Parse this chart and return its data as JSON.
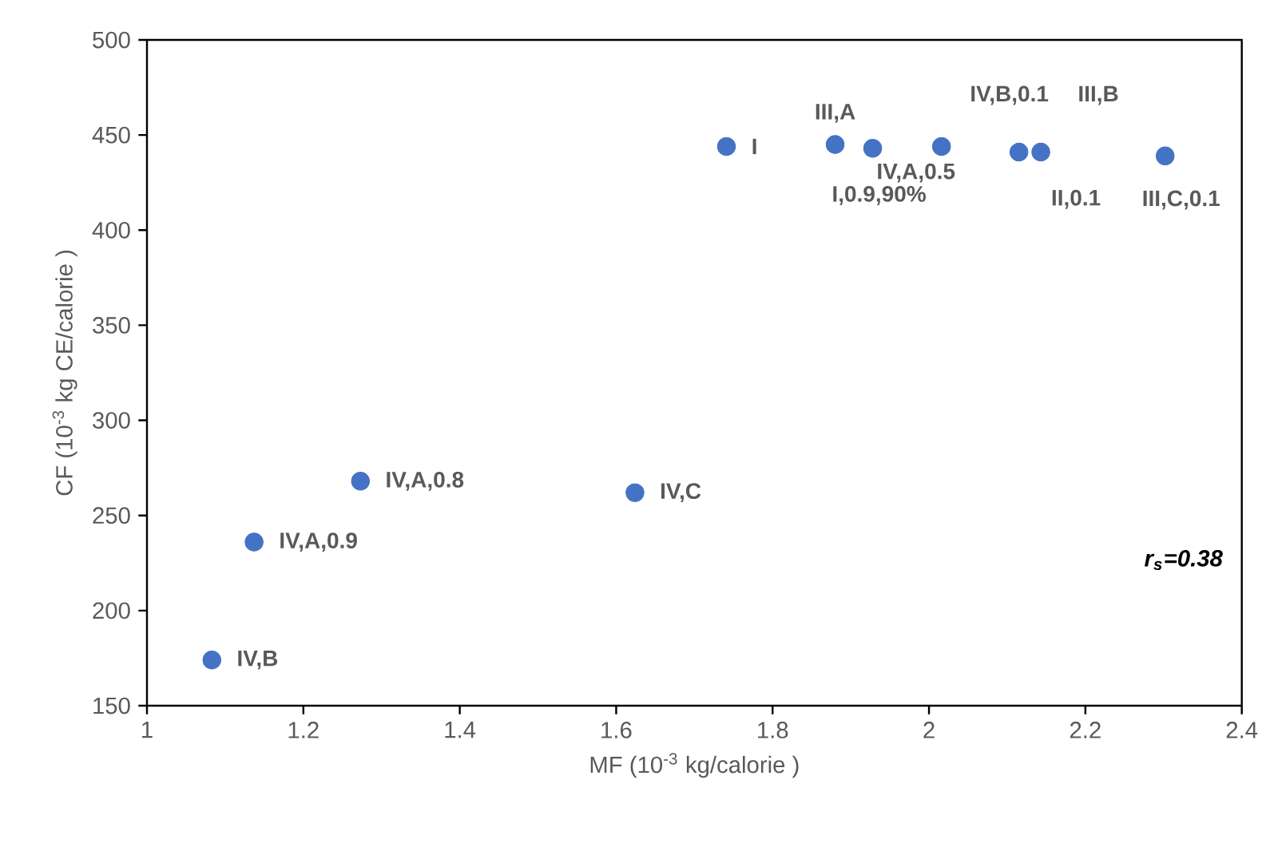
{
  "chart_data": {
    "type": "scatter",
    "xlabel": "MF (10$^{-3}$ kg/calorie )",
    "ylabel": "CF (10$^{-3}$ kg CE/calorie )",
    "x": [
      1.741,
      1.88,
      1.928,
      2.016,
      2.115,
      null,
      2.143,
      2.302,
      1.273,
      1.624,
      1.137,
      1.083
    ],
    "values": [
      444,
      445,
      443,
      444,
      441,
      null,
      441,
      439,
      268,
      262,
      236,
      174
    ],
    "color": "#4472c4",
    "marker": "circle",
    "xlim": [
      1,
      2.4
    ],
    "xticks": [
      1,
      1.2,
      1.4,
      1.6,
      1.8,
      2,
      2.2,
      2.4
    ],
    "ylim": [
      150,
      500
    ],
    "yticks": [
      150,
      200,
      250,
      300,
      350,
      400,
      450,
      500
    ],
    "grid": false,
    "annotations": [
      {
        "text": "I",
        "x": 1.741,
        "y": 444
      },
      {
        "text": "III,A",
        "x": 1.88,
        "y": 445
      },
      {
        "text": "I,0.9,90%",
        "x": 1.928,
        "y": 443
      },
      {
        "text": "IV,A,0.5",
        "x": 2.016,
        "y": 444
      },
      {
        "text": "IV,B,0.1",
        "x": 2.115,
        "y": 441
      },
      {
        "text": "III,B",
        "x": 2.143,
        "y": 441
      },
      {
        "text": "II,0.1",
        "x": 2.143,
        "y": 441
      },
      {
        "text": "III,C,0.1",
        "x": 2.302,
        "y": 439
      },
      {
        "text": "IV,A,0.8",
        "x": 1.273,
        "y": 268
      },
      {
        "text": "IV,C",
        "x": 1.624,
        "y": 262
      },
      {
        "text": "IV,A,0.9",
        "x": 1.137,
        "y": 236
      },
      {
        "text": "IV,B",
        "x": 1.083,
        "y": 174
      },
      "r$_{s}$=0.38"
    ]
  }
}
